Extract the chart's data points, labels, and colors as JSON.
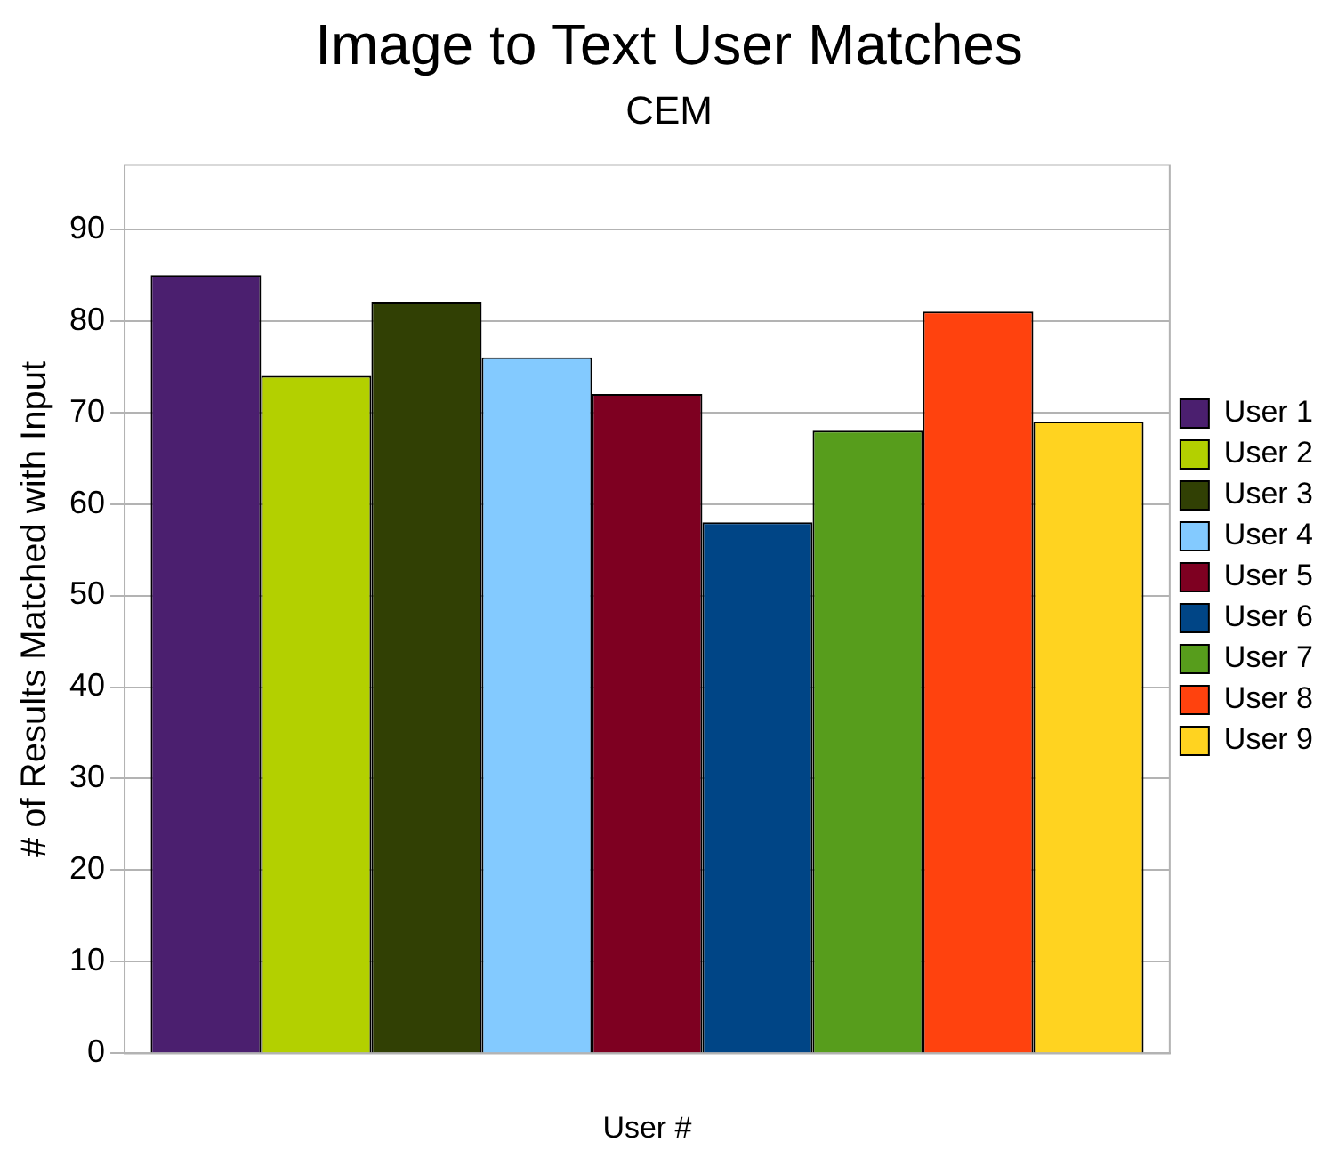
{
  "chart_data": {
    "type": "bar",
    "title": "Image to Text User Matches",
    "subtitle": "CEM",
    "xlabel": "User #",
    "ylabel": "# of Results Matched with Input",
    "categories": [
      null
    ],
    "series": [
      {
        "name": "User 1",
        "color": "#4b1f6f",
        "values": [
          85
        ]
      },
      {
        "name": "User 2",
        "color": "#b3d000",
        "values": [
          74
        ]
      },
      {
        "name": "User 3",
        "color": "#314004",
        "values": [
          82
        ]
      },
      {
        "name": "User 4",
        "color": "#83caff",
        "values": [
          76
        ]
      },
      {
        "name": "User 5",
        "color": "#7e0021",
        "values": [
          72
        ]
      },
      {
        "name": "User 6",
        "color": "#004586",
        "values": [
          58
        ]
      },
      {
        "name": "User 7",
        "color": "#579d1c",
        "values": [
          68
        ]
      },
      {
        "name": "User 8",
        "color": "#ff420e",
        "values": [
          81
        ]
      },
      {
        "name": "User 9",
        "color": "#ffd320",
        "values": [
          69
        ]
      }
    ],
    "ylim": [
      0,
      97
    ],
    "yticks": [
      0,
      10,
      20,
      30,
      40,
      50,
      60,
      70,
      80,
      90
    ],
    "grid": "y",
    "legend": "right"
  }
}
